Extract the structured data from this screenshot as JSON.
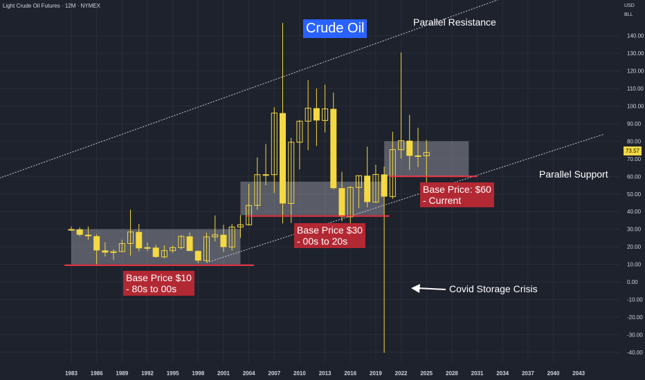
{
  "header": {
    "symbol_title": "Light Crude Oil Futures · 12M · NYMEX"
  },
  "scale_info": {
    "currency": "USD",
    "unit": "BLL"
  },
  "price_tag": {
    "value": "73.57"
  },
  "annotations": {
    "title": "Crude Oil",
    "parallel_resistance": "Parallel Resistance",
    "parallel_support": "Parallel Support",
    "covid": "Covid Storage Crisis",
    "base_10": "Base Price $10\n- 80s to 00s",
    "base_30": "Base Price $30\n- 00s to 20s",
    "base_60": "Base Price: $60\n- Current"
  },
  "colors": {
    "background": "#1e222d",
    "up_candle": "#f4d942",
    "down_candle": "#f4d942",
    "support_line": "#f23645",
    "zone_fill": "#b2b5be",
    "badge": "#b22833",
    "title_box": "#2962ff"
  },
  "chart_data": {
    "type": "candlestick",
    "title": "Light Crude Oil Futures · 12M · NYMEX",
    "x_axis_ticks": [
      "1983",
      "1986",
      "1989",
      "1992",
      "1995",
      "1998",
      "2001",
      "2004",
      "2007",
      "2010",
      "2013",
      "2016",
      "2019",
      "2022",
      "2025",
      "2028",
      "2031",
      "2034",
      "2037",
      "2040",
      "2043"
    ],
    "y_axis_ticks": [
      140,
      130,
      120,
      110,
      100,
      90,
      80,
      70,
      60,
      50,
      40,
      30,
      20,
      10,
      0,
      -10,
      -20,
      -30,
      -40
    ],
    "ylim": [
      -45,
      155
    ],
    "grid": true,
    "candles": [
      {
        "year": 1983,
        "o": 29.5,
        "h": 31.5,
        "l": 29,
        "c": 29.8
      },
      {
        "year": 1984,
        "o": 29.8,
        "h": 31,
        "l": 26,
        "c": 26.8
      },
      {
        "year": 1985,
        "o": 26.8,
        "h": 31.5,
        "l": 24,
        "c": 26
      },
      {
        "year": 1986,
        "o": 26,
        "h": 27,
        "l": 10,
        "c": 17.9
      },
      {
        "year": 1987,
        "o": 17.9,
        "h": 22.5,
        "l": 14.5,
        "c": 16.7
      },
      {
        "year": 1988,
        "o": 16.7,
        "h": 18.5,
        "l": 12.5,
        "c": 17.2
      },
      {
        "year": 1989,
        "o": 17.2,
        "h": 24,
        "l": 17,
        "c": 21.8
      },
      {
        "year": 1990,
        "o": 21.8,
        "h": 41,
        "l": 15,
        "c": 28.4
      },
      {
        "year": 1991,
        "o": 28.4,
        "h": 33,
        "l": 17.5,
        "c": 19.1
      },
      {
        "year": 1992,
        "o": 19.1,
        "h": 22.5,
        "l": 17.5,
        "c": 19.5
      },
      {
        "year": 1993,
        "o": 19.5,
        "h": 21,
        "l": 13.7,
        "c": 14.2
      },
      {
        "year": 1994,
        "o": 14.2,
        "h": 20.8,
        "l": 13.5,
        "c": 17.8
      },
      {
        "year": 1995,
        "o": 17.8,
        "h": 20.8,
        "l": 16.5,
        "c": 19.5
      },
      {
        "year": 1996,
        "o": 19.5,
        "h": 26.5,
        "l": 18.5,
        "c": 25.9
      },
      {
        "year": 1997,
        "o": 25.9,
        "h": 28,
        "l": 17.5,
        "c": 17.6
      },
      {
        "year": 1998,
        "o": 17.6,
        "h": 18,
        "l": 10.7,
        "c": 12.1
      },
      {
        "year": 1999,
        "o": 12.1,
        "h": 28,
        "l": 11.4,
        "c": 25.6
      },
      {
        "year": 2000,
        "o": 25.6,
        "h": 37.8,
        "l": 23,
        "c": 26.8
      },
      {
        "year": 2001,
        "o": 26.8,
        "h": 32.5,
        "l": 17,
        "c": 19.8
      },
      {
        "year": 2002,
        "o": 19.8,
        "h": 33,
        "l": 17.8,
        "c": 31.2
      },
      {
        "year": 2003,
        "o": 31.2,
        "h": 38,
        "l": 25,
        "c": 32.5
      },
      {
        "year": 2004,
        "o": 32.5,
        "h": 55.7,
        "l": 32,
        "c": 43.5
      },
      {
        "year": 2005,
        "o": 43.5,
        "h": 70.8,
        "l": 41,
        "c": 61
      },
      {
        "year": 2006,
        "o": 61,
        "h": 78.4,
        "l": 55,
        "c": 61
      },
      {
        "year": 2007,
        "o": 61,
        "h": 99.3,
        "l": 50.5,
        "c": 96
      },
      {
        "year": 2008,
        "o": 96,
        "h": 147.3,
        "l": 33.2,
        "c": 44.6
      },
      {
        "year": 2009,
        "o": 44.6,
        "h": 82,
        "l": 33.5,
        "c": 79.4
      },
      {
        "year": 2010,
        "o": 79.4,
        "h": 92,
        "l": 64,
        "c": 91.4
      },
      {
        "year": 2011,
        "o": 91.4,
        "h": 114.8,
        "l": 74.9,
        "c": 98.8
      },
      {
        "year": 2012,
        "o": 98.8,
        "h": 110,
        "l": 77.3,
        "c": 91.8
      },
      {
        "year": 2013,
        "o": 91.8,
        "h": 112.2,
        "l": 85,
        "c": 98.4
      },
      {
        "year": 2014,
        "o": 98.4,
        "h": 107.7,
        "l": 52.7,
        "c": 53.3
      },
      {
        "year": 2015,
        "o": 53.3,
        "h": 62.6,
        "l": 34.5,
        "c": 37
      },
      {
        "year": 2016,
        "o": 37,
        "h": 54.5,
        "l": 26,
        "c": 53.7
      },
      {
        "year": 2017,
        "o": 53.7,
        "h": 60.5,
        "l": 42,
        "c": 60.4
      },
      {
        "year": 2018,
        "o": 60.4,
        "h": 76.9,
        "l": 42.4,
        "c": 45.4
      },
      {
        "year": 2019,
        "o": 45.4,
        "h": 66.6,
        "l": 45,
        "c": 61.1
      },
      {
        "year": 2020,
        "o": 61.1,
        "h": 65.6,
        "l": -40.3,
        "c": 48.5
      },
      {
        "year": 2021,
        "o": 48.5,
        "h": 85.4,
        "l": 47.2,
        "c": 75.2
      },
      {
        "year": 2022,
        "o": 75.2,
        "h": 130.5,
        "l": 70.1,
        "c": 80.3
      },
      {
        "year": 2023,
        "o": 80.3,
        "h": 95,
        "l": 63.6,
        "c": 71.7
      },
      {
        "year": 2024,
        "o": 71.7,
        "h": 87.7,
        "l": 65.3,
        "c": 71.7
      },
      {
        "year": 2025,
        "o": 71.7,
        "h": 80.8,
        "l": 55.1,
        "c": 73.6
      }
    ],
    "base_zones": [
      {
        "x_start": 1983,
        "x_end": 2003,
        "low": 10,
        "high": 30
      },
      {
        "x_start": 2003,
        "x_end": 2020,
        "low": 38,
        "high": 57
      },
      {
        "x_start": 2020,
        "x_end": 2030,
        "low": 60,
        "high": 80
      }
    ],
    "support_levels": [
      {
        "x_start": 1982.2,
        "x_end": 2004.6,
        "y": 9.5
      },
      {
        "x_start": 2003.8,
        "x_end": 2020.6,
        "y": 37.5
      },
      {
        "x_start": 2020.6,
        "x_end": 2031,
        "y": 60
      }
    ],
    "trendlines": [
      {
        "name": "Parallel Resistance",
        "x1": 1974.5,
        "y1": 59,
        "x2": 2046,
        "y2": 182
      },
      {
        "name": "Parallel Support",
        "x1": 1999,
        "y1": 11,
        "x2": 2046,
        "y2": 84
      }
    ],
    "last_price": 73.57
  }
}
